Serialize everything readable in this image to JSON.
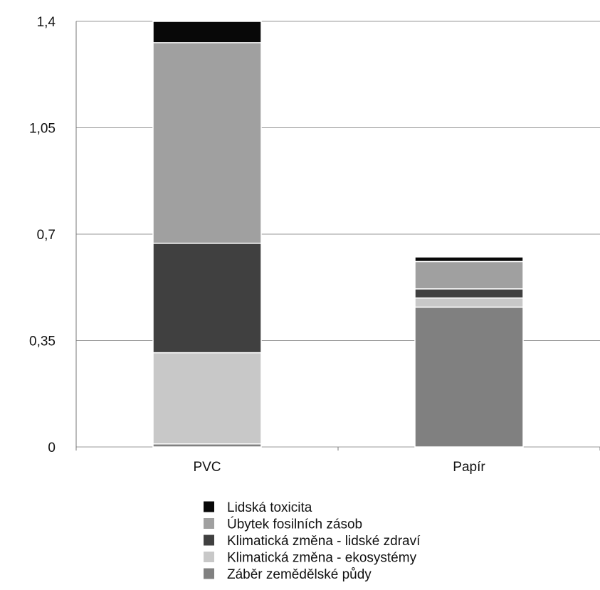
{
  "chart_data": {
    "type": "bar",
    "stacked": true,
    "categories": [
      "PVC",
      "Papír"
    ],
    "ylim": [
      0,
      1.4
    ],
    "yticks": [
      "0",
      "0,35",
      "0,7",
      "1,05",
      "1,4"
    ],
    "ytick_values": [
      0,
      0.35,
      0.7,
      1.05,
      1.4
    ],
    "grid": "horizontal",
    "legend_position": "bottom",
    "series": [
      {
        "name": "Záběr zemědělské půdy",
        "color": "#808080",
        "values": [
          0.01,
          0.46
        ]
      },
      {
        "name": "Klimatická změna - ekosystémy",
        "color": "#c8c8c8",
        "values": [
          0.3,
          0.03
        ]
      },
      {
        "name": "Klimatická změna - lidské zdraví",
        "color": "#404040",
        "values": [
          0.36,
          0.03
        ]
      },
      {
        "name": "Úbytek fosilních zásob",
        "color": "#a0a0a0",
        "values": [
          0.66,
          0.09
        ]
      },
      {
        "name": "Lidská toxicita",
        "color": "#080808",
        "values": [
          0.07,
          0.015
        ]
      }
    ],
    "legend_order": [
      4,
      3,
      2,
      1,
      0
    ]
  }
}
